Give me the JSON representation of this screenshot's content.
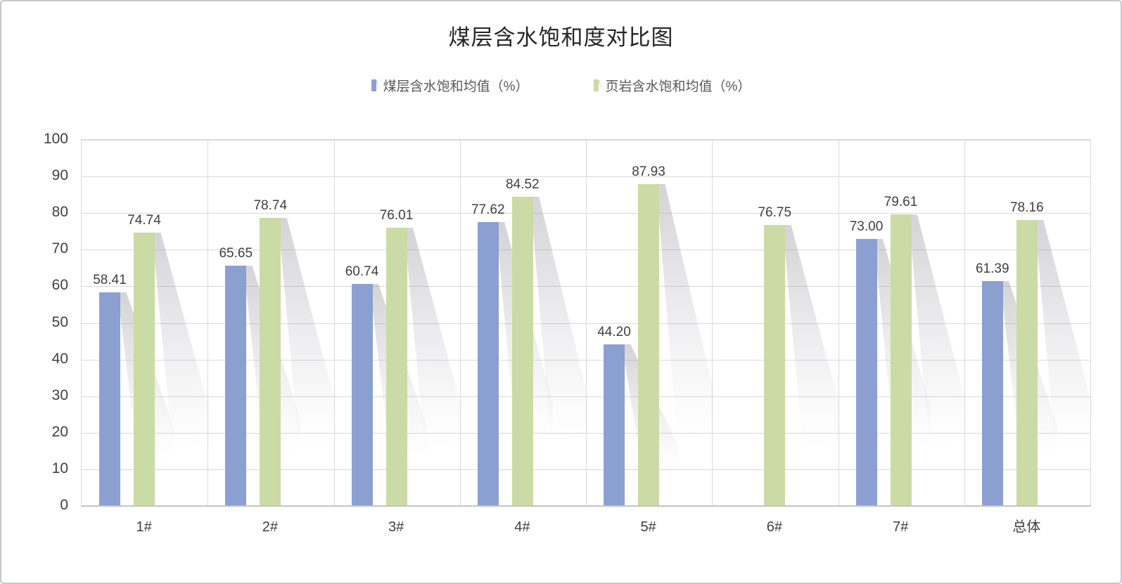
{
  "chart_data": {
    "type": "bar",
    "title": "煤层含水饱和度对比图",
    "categories": [
      "1#",
      "2#",
      "3#",
      "4#",
      "5#",
      "6#",
      "7#",
      "总体"
    ],
    "series": [
      {
        "name": "煤层含水饱和均值（%）",
        "key": "coal",
        "color": "#8BA0D1",
        "values": [
          58.41,
          65.65,
          60.74,
          77.62,
          44.2,
          null,
          73.0,
          61.39
        ]
      },
      {
        "name": "页岩含水饱和均值（%）",
        "key": "shale",
        "color": "#CBDBA5",
        "values": [
          74.74,
          78.74,
          76.01,
          84.52,
          87.93,
          76.75,
          79.61,
          78.16
        ]
      }
    ],
    "yticks": [
      0,
      10,
      20,
      30,
      40,
      50,
      60,
      70,
      80,
      90,
      100
    ],
    "ylim": [
      0,
      100
    ],
    "xlabel": "",
    "ylabel": "",
    "grid": true,
    "legend_position": "top",
    "data_labels": true,
    "data_label_decimals": 2,
    "colors": {
      "title_text": "#262626",
      "legend_text": "#595959",
      "axis_text": "#404040",
      "gridline": "#d9d9d9",
      "axis_line": "#c3c3c3",
      "frame_border": "#c5c7ca",
      "background": "#ffffff"
    }
  }
}
